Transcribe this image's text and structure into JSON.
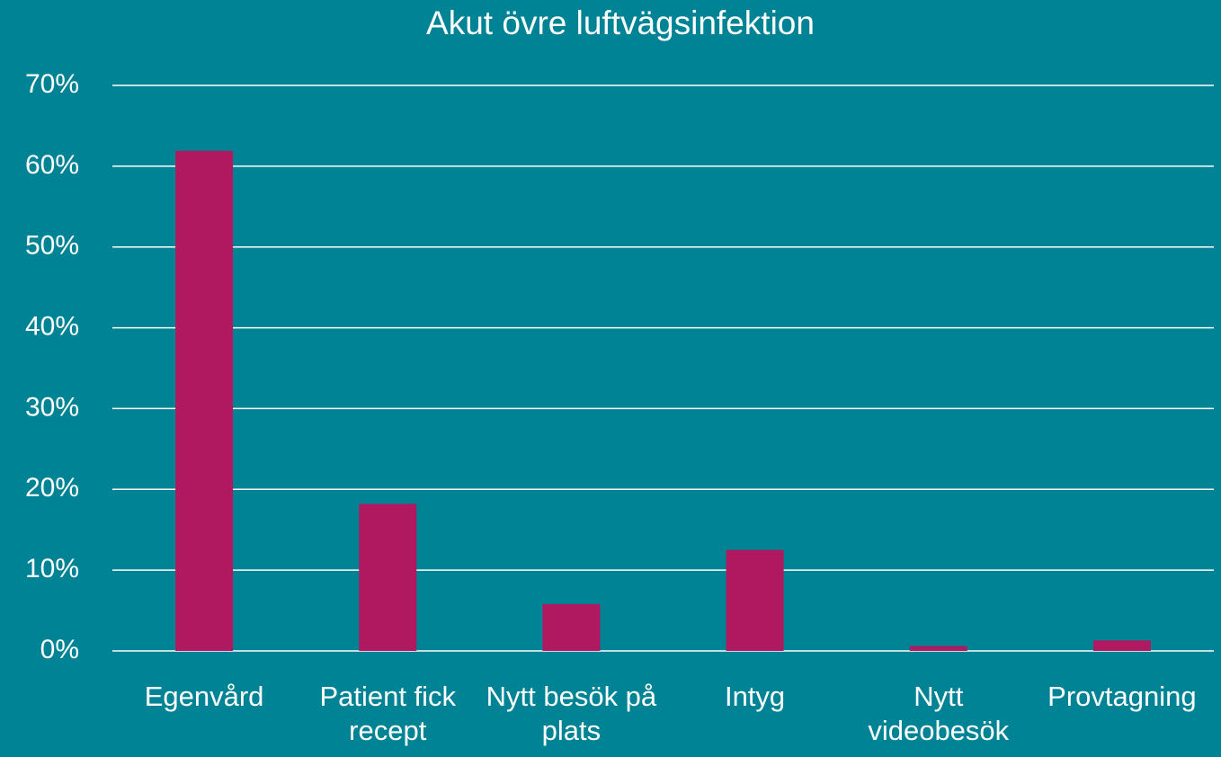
{
  "chart_data": {
    "type": "bar",
    "title": "Akut övre luftvägsinfektion",
    "categories": [
      "Egenvård",
      "Patient fick recept",
      "Nytt besök på plats",
      "Intyg",
      "Nytt videobesök",
      "Provtagning"
    ],
    "values": [
      61.9,
      18.2,
      5.8,
      12.5,
      0.6,
      1.3
    ],
    "color": "#b0195f",
    "ylim": [
      0,
      70
    ],
    "yticks": [
      {
        "value": 0,
        "label": "0%"
      },
      {
        "value": 10,
        "label": "10%"
      },
      {
        "value": 20,
        "label": "20%"
      },
      {
        "value": 30,
        "label": "30%"
      },
      {
        "value": 40,
        "label": "40%"
      },
      {
        "value": 50,
        "label": "50%"
      },
      {
        "value": 60,
        "label": "60%"
      },
      {
        "value": 70,
        "label": "70%"
      }
    ],
    "grid": true
  }
}
